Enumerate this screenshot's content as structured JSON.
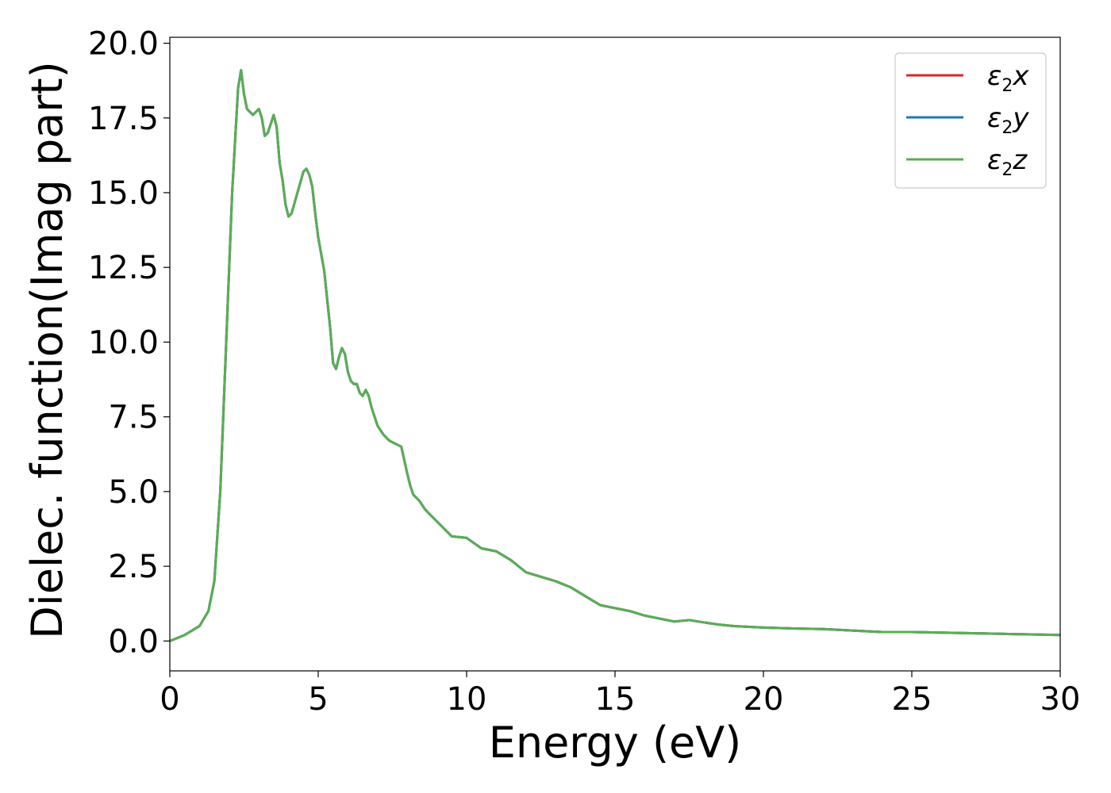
{
  "chart_data": {
    "type": "line",
    "xlabel": "Energy (eV)",
    "ylabel": "Dielec. function(Imag part)",
    "xlim": [
      0,
      30
    ],
    "ylim": [
      -1,
      20.2
    ],
    "xticks": [
      0,
      5,
      10,
      15,
      20,
      25,
      30
    ],
    "xtick_labels": [
      "0",
      "5",
      "10",
      "15",
      "20",
      "25",
      "30"
    ],
    "yticks": [
      0,
      2.5,
      5,
      7.5,
      10,
      12.5,
      15,
      17.5,
      20
    ],
    "ytick_labels": [
      "0.0",
      "2.5",
      "5.0",
      "7.5",
      "10.0",
      "12.5",
      "15.0",
      "17.5",
      "20.0"
    ],
    "grid": false,
    "legend_position": "top-right",
    "legend_entries": [
      {
        "base": "ε",
        "sub": "2",
        "comp": "x",
        "color": "#d62728"
      },
      {
        "base": "ε",
        "sub": "2",
        "comp": "y",
        "color": "#1f77b4"
      },
      {
        "base": "ε",
        "sub": "2",
        "comp": "z",
        "color": "#5aad55"
      }
    ],
    "x": [
      0,
      0.5,
      1.0,
      1.3,
      1.5,
      1.7,
      1.9,
      2.1,
      2.3,
      2.4,
      2.5,
      2.6,
      2.8,
      3.0,
      3.1,
      3.2,
      3.3,
      3.5,
      3.6,
      3.7,
      3.8,
      3.9,
      4.0,
      4.1,
      4.3,
      4.5,
      4.6,
      4.7,
      4.8,
      4.9,
      5.0,
      5.2,
      5.4,
      5.5,
      5.6,
      5.7,
      5.8,
      5.9,
      6.0,
      6.1,
      6.2,
      6.3,
      6.4,
      6.5,
      6.6,
      6.7,
      6.8,
      7.0,
      7.2,
      7.4,
      7.6,
      7.8,
      8.0,
      8.1,
      8.2,
      8.4,
      8.6,
      8.8,
      9.0,
      9.5,
      10.0,
      10.5,
      11.0,
      11.5,
      12.0,
      12.5,
      13.0,
      13.5,
      14.0,
      14.5,
      15.0,
      15.5,
      16.0,
      16.5,
      17.0,
      17.5,
      18.0,
      18.5,
      19.0,
      20.0,
      21.0,
      22.0,
      23.0,
      24.0,
      25.0,
      26.0,
      27.0,
      28.0,
      29.0,
      30.0
    ],
    "series": [
      {
        "name": "ε2x",
        "color": "#d62728",
        "values": [
          0,
          0.2,
          0.5,
          1.0,
          2.0,
          5.0,
          10.0,
          15.0,
          18.5,
          19.1,
          18.3,
          17.8,
          17.6,
          17.8,
          17.5,
          16.9,
          17.0,
          17.6,
          17.2,
          16.0,
          15.4,
          14.6,
          14.2,
          14.3,
          15.0,
          15.7,
          15.8,
          15.6,
          15.2,
          14.3,
          13.5,
          12.4,
          10.5,
          9.3,
          9.1,
          9.5,
          9.8,
          9.6,
          9.0,
          8.7,
          8.6,
          8.6,
          8.3,
          8.2,
          8.4,
          8.2,
          7.8,
          7.2,
          6.9,
          6.7,
          6.6,
          6.5,
          5.6,
          5.2,
          4.9,
          4.7,
          4.4,
          4.2,
          4.0,
          3.5,
          3.45,
          3.1,
          3.0,
          2.7,
          2.3,
          2.15,
          2.0,
          1.8,
          1.5,
          1.2,
          1.1,
          1.0,
          0.85,
          0.75,
          0.65,
          0.7,
          0.62,
          0.55,
          0.5,
          0.45,
          0.42,
          0.4,
          0.35,
          0.3,
          0.3,
          0.28,
          0.26,
          0.24,
          0.22,
          0.2
        ]
      },
      {
        "name": "ε2y",
        "color": "#1f77b4",
        "values": [
          0,
          0.2,
          0.5,
          1.0,
          2.0,
          5.0,
          10.0,
          15.0,
          18.5,
          19.1,
          18.3,
          17.8,
          17.6,
          17.8,
          17.5,
          16.9,
          17.0,
          17.6,
          17.2,
          16.0,
          15.4,
          14.6,
          14.2,
          14.3,
          15.0,
          15.7,
          15.8,
          15.6,
          15.2,
          14.3,
          13.5,
          12.4,
          10.5,
          9.3,
          9.1,
          9.5,
          9.8,
          9.6,
          9.0,
          8.7,
          8.6,
          8.6,
          8.3,
          8.2,
          8.4,
          8.2,
          7.8,
          7.2,
          6.9,
          6.7,
          6.6,
          6.5,
          5.6,
          5.2,
          4.9,
          4.7,
          4.4,
          4.2,
          4.0,
          3.5,
          3.45,
          3.1,
          3.0,
          2.7,
          2.3,
          2.15,
          2.0,
          1.8,
          1.5,
          1.2,
          1.1,
          1.0,
          0.85,
          0.75,
          0.65,
          0.7,
          0.62,
          0.55,
          0.5,
          0.45,
          0.42,
          0.4,
          0.35,
          0.3,
          0.3,
          0.28,
          0.26,
          0.24,
          0.22,
          0.2
        ]
      },
      {
        "name": "ε2z",
        "color": "#5aad55",
        "values": [
          0,
          0.2,
          0.5,
          1.0,
          2.0,
          5.0,
          10.0,
          15.0,
          18.5,
          19.1,
          18.3,
          17.8,
          17.6,
          17.8,
          17.5,
          16.9,
          17.0,
          17.6,
          17.2,
          16.0,
          15.4,
          14.6,
          14.2,
          14.3,
          15.0,
          15.7,
          15.8,
          15.6,
          15.2,
          14.3,
          13.5,
          12.4,
          10.5,
          9.3,
          9.1,
          9.5,
          9.8,
          9.6,
          9.0,
          8.7,
          8.6,
          8.6,
          8.3,
          8.2,
          8.4,
          8.2,
          7.8,
          7.2,
          6.9,
          6.7,
          6.6,
          6.5,
          5.6,
          5.2,
          4.9,
          4.7,
          4.4,
          4.2,
          4.0,
          3.5,
          3.45,
          3.1,
          3.0,
          2.7,
          2.3,
          2.15,
          2.0,
          1.8,
          1.5,
          1.2,
          1.1,
          1.0,
          0.85,
          0.75,
          0.65,
          0.7,
          0.62,
          0.55,
          0.5,
          0.45,
          0.42,
          0.4,
          0.35,
          0.3,
          0.3,
          0.28,
          0.26,
          0.24,
          0.22,
          0.2
        ]
      }
    ]
  }
}
